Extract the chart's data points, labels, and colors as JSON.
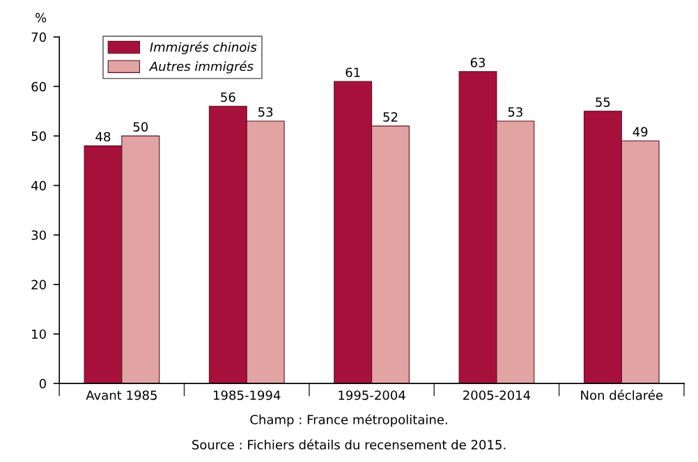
{
  "chart_data": {
    "type": "bar",
    "ylabel": "%",
    "categories": [
      "Avant 1985",
      "1985-1994",
      "1995-2004",
      "2005-2014",
      "Non déclarée"
    ],
    "series": [
      {
        "name": "Immigrés chinois",
        "color": "#a8103c",
        "values": [
          48,
          56,
          61,
          63,
          55
        ]
      },
      {
        "name": "Autres immigrés",
        "color": "#e2a3a3",
        "values": [
          50,
          53,
          52,
          53,
          49
        ]
      }
    ],
    "ylim": [
      0,
      70
    ],
    "yticks": [
      0,
      10,
      20,
      30,
      40,
      50,
      60,
      70
    ],
    "data_labels": true,
    "legend": "top left",
    "grid": false,
    "annotations": [
      "Champ : France métropolitaine.",
      "Source : Fichiers détails du recensement de 2015."
    ]
  }
}
